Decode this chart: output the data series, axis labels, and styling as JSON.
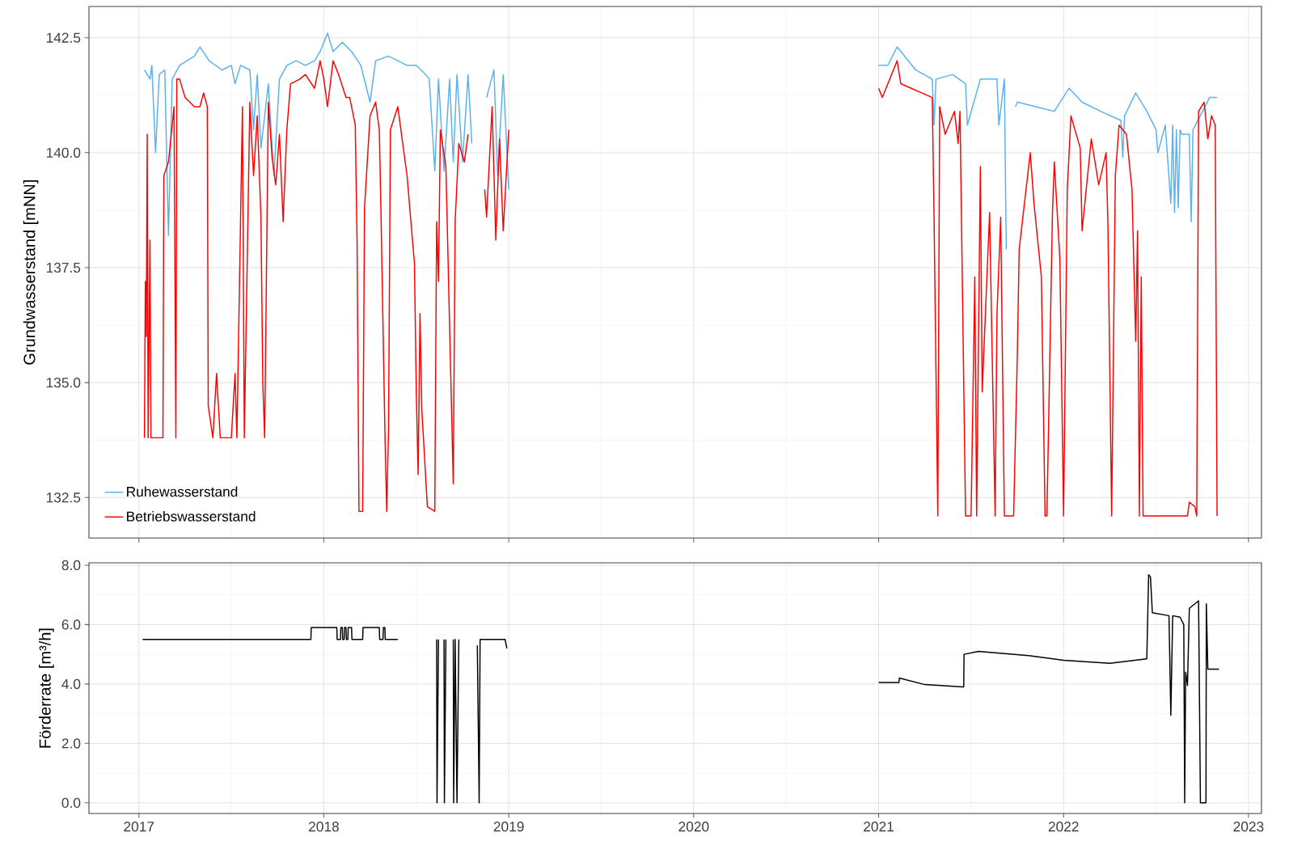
{
  "chart_data": [
    {
      "type": "line",
      "ylabel": "Grundwasserstand [mNN]",
      "xlim": [
        2016.73,
        2023.07
      ],
      "ylim": [
        131.62,
        143.18
      ],
      "xticks": [
        2017,
        2018,
        2019,
        2020,
        2021,
        2022,
        2023
      ],
      "yticks": [
        132.5,
        {
          "value": 135,
          "label": "135.0"
        },
        137.5,
        {
          "value": 140,
          "label": "140.0"
        },
        142.5
      ],
      "tick_labels": "y",
      "grid": true,
      "legend": "bottom left",
      "series": [
        {
          "name": "Ruhewasserstand",
          "color": "#5ab1ef",
          "x": [
            2017.03,
            2017.06,
            2017.07,
            2017.09,
            2017.11,
            2017.14,
            2017.16,
            2017.18,
            2017.22,
            2017.3,
            2017.33,
            2017.38,
            2017.45,
            2017.5,
            2017.52,
            2017.55,
            2017.6,
            2017.62,
            2017.64,
            2017.66,
            2017.7,
            2017.73,
            2017.76,
            2017.8,
            2017.85,
            2017.9,
            2017.95,
            2017.98,
            2018.02,
            2018.05,
            2018.1,
            2018.15,
            2018.2,
            2018.25,
            2018.28,
            2018.35,
            2018.45,
            2018.5,
            2018.55,
            2018.57,
            2018.6,
            2018.62,
            2018.65,
            2018.68,
            2018.7,
            2018.72,
            2018.75,
            2018.78,
            2018.8,
            2018.84,
            2018.88,
            2018.92,
            2018.94,
            2018.97,
            2019.0,
            2020.0,
            2021.0,
            2021.05,
            2021.1,
            2021.2,
            2021.29,
            2021.3,
            2021.31,
            2021.4,
            2021.47,
            2021.48,
            2021.55,
            2021.64,
            2021.65,
            2021.68,
            2021.69,
            2021.7,
            2021.74,
            2021.75,
            2021.85,
            2021.95,
            2022.03,
            2022.1,
            2022.2,
            2022.31,
            2022.32,
            2022.33,
            2022.39,
            2022.45,
            2022.5,
            2022.51,
            2022.55,
            2022.58,
            2022.59,
            2022.6,
            2022.61,
            2022.62,
            2022.63,
            2022.64,
            2022.68,
            2022.69,
            2022.7,
            2022.79,
            2022.83
          ],
          "values": [
            141.8,
            141.6,
            141.9,
            140.0,
            141.7,
            141.8,
            138.2,
            141.6,
            141.9,
            142.1,
            142.3,
            142.0,
            141.8,
            141.9,
            141.5,
            141.9,
            141.8,
            140.5,
            141.7,
            140.1,
            141.5,
            139.5,
            141.6,
            141.9,
            142.0,
            141.9,
            142.0,
            142.2,
            142.6,
            142.2,
            142.4,
            142.2,
            141.9,
            141.1,
            142.0,
            142.1,
            141.9,
            141.9,
            141.7,
            141.6,
            139.6,
            141.6,
            139.6,
            141.6,
            139.8,
            141.7,
            139.8,
            141.7,
            140.2,
            null,
            141.2,
            141.8,
            139.5,
            141.7,
            139.2,
            null,
            141.9,
            141.9,
            142.3,
            141.8,
            141.6,
            140.6,
            141.6,
            141.7,
            141.5,
            140.6,
            141.6,
            141.6,
            140.6,
            141.6,
            137.9,
            null,
            141.0,
            141.1,
            141.0,
            140.9,
            141.4,
            141.1,
            140.9,
            140.7,
            139.9,
            140.8,
            141.3,
            140.9,
            140.5,
            140.0,
            140.6,
            138.9,
            140.6,
            138.7,
            140.5,
            138.8,
            140.5,
            140.4,
            140.4,
            138.5,
            140.5,
            141.2,
            141.2
          ]
        },
        {
          "name": "Betriebswasserstand",
          "color": "#ff0000",
          "x": [
            2017.03,
            2017.035,
            2017.04,
            2017.045,
            2017.05,
            2017.06,
            2017.065,
            2017.13,
            2017.135,
            2017.16,
            2017.19,
            2017.2,
            2017.205,
            2017.22,
            2017.25,
            2017.3,
            2017.33,
            2017.35,
            2017.37,
            2017.375,
            2017.4,
            2017.42,
            2017.44,
            2017.5,
            2017.52,
            2017.53,
            2017.56,
            2017.57,
            2017.6,
            2017.62,
            2017.64,
            2017.66,
            2017.67,
            2017.68,
            2017.7,
            2017.72,
            2017.74,
            2017.76,
            2017.78,
            2017.8,
            2017.82,
            2017.87,
            2017.9,
            2017.95,
            2017.98,
            2018.0,
            2018.02,
            2018.05,
            2018.08,
            2018.12,
            2018.14,
            2018.17,
            2018.18,
            2018.19,
            2018.21,
            2018.22,
            2018.25,
            2018.28,
            2018.3,
            2018.31,
            2018.33,
            2018.34,
            2018.35,
            2018.36,
            2018.4,
            2018.45,
            2018.49,
            2018.5,
            2018.51,
            2018.52,
            2018.53,
            2018.56,
            2018.6,
            2018.61,
            2018.62,
            2018.63,
            2018.66,
            2018.7,
            2018.71,
            2018.73,
            2018.76,
            2018.78,
            2018.82,
            2018.87,
            2018.88,
            2018.91,
            2018.93,
            2018.95,
            2018.97,
            2019.0,
            2020.0,
            2021.0,
            2021.02,
            2021.1,
            2021.12,
            2021.29,
            2021.3,
            2021.32,
            2021.33,
            2021.36,
            2021.41,
            2021.43,
            2021.44,
            2021.47,
            2021.5,
            2021.52,
            2021.53,
            2021.55,
            2021.56,
            2021.6,
            2021.63,
            2021.64,
            2021.66,
            2021.68,
            2021.73,
            2021.75,
            2021.76,
            2021.78,
            2021.82,
            2021.84,
            2021.88,
            2021.9,
            2021.91,
            2021.94,
            2021.95,
            2021.98,
            2022.0,
            2022.02,
            2022.04,
            2022.09,
            2022.1,
            2022.15,
            2022.19,
            2022.23,
            2022.24,
            2022.26,
            2022.28,
            2022.3,
            2022.34,
            2022.37,
            2022.39,
            2022.4,
            2022.41,
            2022.42,
            2022.43,
            2022.67,
            2022.68,
            2022.71,
            2022.72,
            2022.73,
            2022.76,
            2022.78,
            2022.8,
            2022.82,
            2022.83
          ],
          "values": [
            133.8,
            137.2,
            136.0,
            140.4,
            133.8,
            138.1,
            133.8,
            133.8,
            139.5,
            139.8,
            141.0,
            133.8,
            141.6,
            141.6,
            141.2,
            141.0,
            141.0,
            141.3,
            141.0,
            134.5,
            133.8,
            135.2,
            133.8,
            133.8,
            135.2,
            133.8,
            141.0,
            133.8,
            141.1,
            139.5,
            140.8,
            138.6,
            135.0,
            133.8,
            141.1,
            139.9,
            139.3,
            140.4,
            138.5,
            140.5,
            141.5,
            141.6,
            141.7,
            141.4,
            142.0,
            141.6,
            141.0,
            142.0,
            141.7,
            141.2,
            141.2,
            140.6,
            138.0,
            132.2,
            132.2,
            138.8,
            140.8,
            141.1,
            140.5,
            138.5,
            134.0,
            132.2,
            134.0,
            140.5,
            141.0,
            139.5,
            137.6,
            134.8,
            133.0,
            136.5,
            134.4,
            132.3,
            132.2,
            138.5,
            137.2,
            140.5,
            139.7,
            132.8,
            138.5,
            140.2,
            139.8,
            140.4,
            null,
            139.2,
            138.6,
            141.0,
            138.1,
            140.3,
            138.3,
            140.5,
            null,
            141.4,
            141.2,
            142.0,
            141.5,
            141.2,
            138.5,
            132.1,
            141.0,
            140.4,
            140.9,
            140.2,
            140.9,
            132.1,
            132.1,
            137.3,
            132.1,
            139.7,
            134.8,
            138.7,
            132.1,
            136.5,
            138.6,
            132.1,
            132.1,
            135.6,
            137.9,
            138.6,
            140.0,
            138.9,
            137.3,
            132.1,
            132.1,
            138.7,
            139.8,
            137.7,
            132.1,
            139.2,
            140.8,
            140.1,
            138.3,
            140.3,
            139.3,
            140.0,
            138.4,
            132.1,
            139.5,
            140.6,
            140.4,
            139.2,
            135.9,
            138.3,
            132.1,
            137.3,
            132.1,
            132.1,
            132.4,
            132.3,
            132.1,
            140.9,
            141.1,
            140.3,
            140.8,
            140.6,
            132.1
          ]
        }
      ]
    },
    {
      "type": "line",
      "ylabel": "Förderrate [m³/h]",
      "xlim": [
        2016.73,
        2023.07
      ],
      "ylim": [
        -0.36,
        8.08
      ],
      "xticks": [
        2017,
        2018,
        2019,
        2020,
        2021,
        2022,
        2023
      ],
      "yticks": [
        {
          "value": 0,
          "label": "0.0"
        },
        {
          "value": 2,
          "label": "2.0"
        },
        {
          "value": 4,
          "label": "4.0"
        },
        {
          "value": 6,
          "label": "6.0"
        },
        {
          "value": 8,
          "label": "8.0"
        }
      ],
      "grid": true,
      "series": [
        {
          "color": "#000000",
          "x": [
            2017.02,
            2017.93,
            2017.932,
            2018.07,
            2018.072,
            2018.09,
            2018.092,
            2018.1,
            2018.102,
            2018.11,
            2018.112,
            2018.12,
            2018.122,
            2018.13,
            2018.132,
            2018.15,
            2018.152,
            2018.21,
            2018.212,
            2018.3,
            2018.302,
            2018.32,
            2018.322,
            2018.33,
            2018.332,
            2018.4,
            2018.42,
            2018.61,
            2018.612,
            2018.62,
            2018.63,
            2018.65,
            2018.652,
            2018.66,
            2018.68,
            2018.7,
            2018.702,
            2018.71,
            2018.72,
            2018.73,
            2018.76,
            2018.83,
            2018.84,
            2018.845,
            2018.98,
            2018.99,
            2020.0,
            2021.0,
            2021.11,
            2021.112,
            2021.25,
            2021.46,
            2021.462,
            2021.54,
            2021.82,
            2022.0,
            2022.25,
            2022.45,
            2022.46,
            2022.47,
            2022.48,
            2022.57,
            2022.58,
            2022.59,
            2022.63,
            2022.65,
            2022.655,
            2022.66,
            2022.67,
            2022.68,
            2022.73,
            2022.74,
            2022.77,
            2022.772,
            2022.78,
            2022.84
          ],
          "values": [
            5.5,
            5.5,
            5.9,
            5.9,
            5.5,
            5.5,
            5.9,
            5.9,
            5.5,
            5.5,
            5.9,
            5.9,
            5.5,
            5.5,
            5.9,
            5.9,
            5.5,
            5.5,
            5.9,
            5.9,
            5.5,
            5.5,
            5.9,
            5.9,
            5.5,
            5.5,
            null,
            5.5,
            0.0,
            5.5,
            null,
            5.5,
            0.0,
            5.5,
            null,
            5.5,
            0.0,
            5.5,
            0.0,
            5.5,
            null,
            5.3,
            0.0,
            5.5,
            5.5,
            5.2,
            null,
            4.05,
            4.05,
            4.2,
            3.98,
            3.9,
            5.0,
            5.1,
            4.95,
            4.8,
            4.7,
            4.85,
            7.68,
            7.6,
            6.4,
            6.3,
            2.95,
            6.3,
            6.25,
            6.0,
            0.0,
            4.4,
            3.95,
            6.55,
            6.8,
            0.0,
            0.0,
            6.7,
            4.5,
            4.5
          ]
        }
      ]
    }
  ]
}
